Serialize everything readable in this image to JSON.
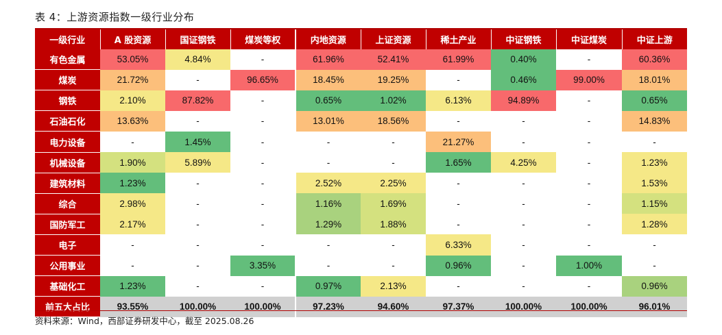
{
  "title": "表 4：上游资源指数一级行业分布",
  "source": "资料来源：Wind，西部证券研发中心，截至 2025.08.26",
  "colors": {
    "header": "#c00000",
    "high": "#f8696b",
    "mid_high": "#fcbf7b",
    "mid": "#f5e887",
    "mid_low": "#d4e17f",
    "low_mid": "#a9d27e",
    "low": "#63be7b",
    "summary": "#d0d0d0"
  },
  "table": {
    "corner": "一级行业",
    "columns": [
      "A 股资源",
      "国证钢铁",
      "煤炭等权",
      "内地资源",
      "上证资源",
      "稀土产业",
      "中证钢铁",
      "中证煤炭",
      "中证上游"
    ],
    "rows": [
      {
        "label": "有色金属",
        "values": [
          "53.05%",
          "4.84%",
          "-",
          "61.96%",
          "52.41%",
          "61.99%",
          "0.40%",
          "-",
          "60.36%"
        ],
        "colors": [
          "#f8696b",
          "#f5e887",
          "",
          "#f8696b",
          "#f8696b",
          "#f8696b",
          "#63be7b",
          "",
          "#f8696b"
        ]
      },
      {
        "label": "煤炭",
        "values": [
          "21.72%",
          "-",
          "96.65%",
          "18.45%",
          "19.25%",
          "-",
          "0.46%",
          "99.00%",
          "18.01%"
        ],
        "colors": [
          "#fcbf7b",
          "",
          "#f8696b",
          "#fcbf7b",
          "#fcbf7b",
          "",
          "#63be7b",
          "#f8696b",
          "#fcbf7b"
        ]
      },
      {
        "label": "钢铁",
        "values": [
          "2.10%",
          "87.82%",
          "-",
          "0.65%",
          "1.02%",
          "6.13%",
          "94.89%",
          "-",
          "0.65%"
        ],
        "colors": [
          "#f5e887",
          "#f8696b",
          "",
          "#63be7b",
          "#63be7b",
          "#f5e887",
          "#f8696b",
          "",
          "#63be7b"
        ]
      },
      {
        "label": "石油石化",
        "values": [
          "13.63%",
          "-",
          "-",
          "13.01%",
          "18.56%",
          "-",
          "-",
          "-",
          "14.83%"
        ],
        "colors": [
          "#fcbf7b",
          "",
          "",
          "#fcbf7b",
          "#fcbf7b",
          "",
          "",
          "",
          "#fcbf7b"
        ]
      },
      {
        "label": "电力设备",
        "values": [
          "-",
          "1.45%",
          "-",
          "-",
          "-",
          "21.27%",
          "-",
          "-",
          "-"
        ],
        "colors": [
          "",
          "#63be7b",
          "",
          "",
          "",
          "#fcbf7b",
          "",
          "",
          ""
        ]
      },
      {
        "label": "机械设备",
        "values": [
          "1.90%",
          "5.89%",
          "-",
          "-",
          "-",
          "1.65%",
          "4.25%",
          "-",
          "1.23%"
        ],
        "colors": [
          "#d4e17f",
          "#f5e887",
          "",
          "",
          "",
          "#63be7b",
          "#f5e887",
          "",
          "#f5e887"
        ]
      },
      {
        "label": "建筑材料",
        "values": [
          "1.23%",
          "-",
          "-",
          "2.52%",
          "2.25%",
          "-",
          "-",
          "-",
          "1.53%"
        ],
        "colors": [
          "#63be7b",
          "",
          "",
          "#f5e887",
          "#f5e887",
          "",
          "",
          "",
          "#f5e887"
        ]
      },
      {
        "label": "综合",
        "values": [
          "2.98%",
          "-",
          "-",
          "1.16%",
          "1.69%",
          "-",
          "-",
          "-",
          "1.15%"
        ],
        "colors": [
          "#f5e887",
          "",
          "",
          "#a9d27e",
          "#d4e17f",
          "",
          "",
          "",
          "#d4e17f"
        ]
      },
      {
        "label": "国防军工",
        "values": [
          "2.17%",
          "-",
          "-",
          "1.29%",
          "1.88%",
          "-",
          "-",
          "-",
          "1.28%"
        ],
        "colors": [
          "#f5e887",
          "",
          "",
          "#a9d27e",
          "#d4e17f",
          "",
          "",
          "",
          "#f5e887"
        ]
      },
      {
        "label": "电子",
        "values": [
          "-",
          "-",
          "-",
          "-",
          "-",
          "6.33%",
          "-",
          "-",
          "-"
        ],
        "colors": [
          "",
          "",
          "",
          "",
          "",
          "#f5e887",
          "",
          "",
          ""
        ]
      },
      {
        "label": "公用事业",
        "values": [
          "-",
          "-",
          "3.35%",
          "-",
          "-",
          "0.96%",
          "-",
          "1.00%",
          "-"
        ],
        "colors": [
          "",
          "",
          "#63be7b",
          "",
          "",
          "#63be7b",
          "",
          "#63be7b",
          ""
        ]
      },
      {
        "label": "基础化工",
        "values": [
          "1.23%",
          "-",
          "-",
          "0.97%",
          "2.13%",
          "-",
          "-",
          "-",
          "0.96%"
        ],
        "colors": [
          "#63be7b",
          "",
          "",
          "#63be7b",
          "#f5e887",
          "",
          "",
          "",
          "#a9d27e"
        ]
      }
    ],
    "summary": {
      "label": "前五大占比",
      "values": [
        "93.55%",
        "100.00%",
        "100.00%",
        "97.23%",
        "94.60%",
        "97.37%",
        "100.00%",
        "100.00%",
        "96.01%"
      ]
    }
  }
}
